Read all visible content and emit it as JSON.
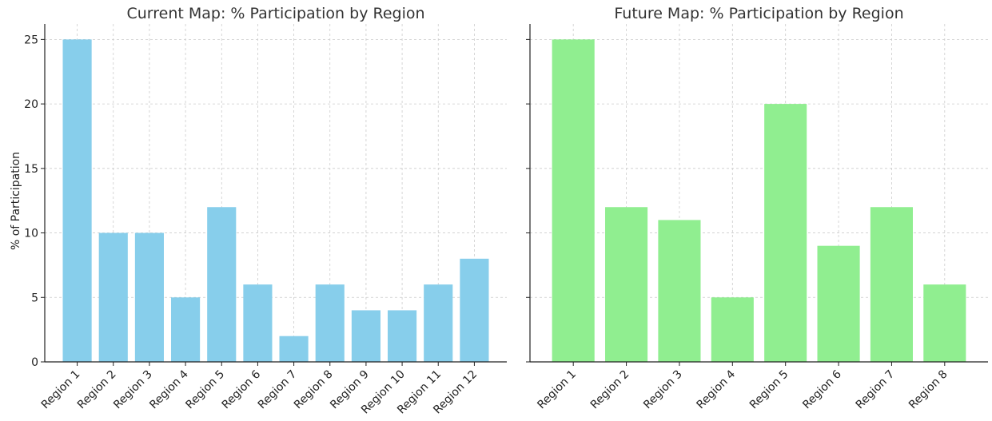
{
  "chart_data": [
    {
      "type": "bar",
      "title": "Current Map: % Participation by Region",
      "ylabel": "% of Participation",
      "xlabel": "",
      "categories": [
        "Region 1",
        "Region 2",
        "Region 3",
        "Region 4",
        "Region 5",
        "Region 6",
        "Region 7",
        "Region 8",
        "Region 9",
        "Region 10",
        "Region 11",
        "Region 12"
      ],
      "values": [
        25,
        10,
        10,
        5,
        12,
        6,
        2,
        6,
        4,
        4,
        6,
        8
      ],
      "ylim": [
        0,
        26.2
      ],
      "yticks": [
        0,
        5,
        10,
        15,
        20,
        25
      ],
      "ytick_labels": [
        "0",
        "5",
        "10",
        "15",
        "20",
        "25"
      ],
      "color": "#87ceeb",
      "grid": true
    },
    {
      "type": "bar",
      "title": "Future Map: % Participation by Region",
      "ylabel": "",
      "xlabel": "",
      "categories": [
        "Region 1",
        "Region 2",
        "Region 3",
        "Region 4",
        "Region 5",
        "Region 6",
        "Region 7",
        "Region 8"
      ],
      "values": [
        25,
        12,
        11,
        5,
        20,
        9,
        12,
        6
      ],
      "ylim": [
        0,
        26.2
      ],
      "yticks": [
        0,
        5,
        10,
        15,
        20,
        25
      ],
      "color": "#90ee90",
      "grid": true
    }
  ]
}
